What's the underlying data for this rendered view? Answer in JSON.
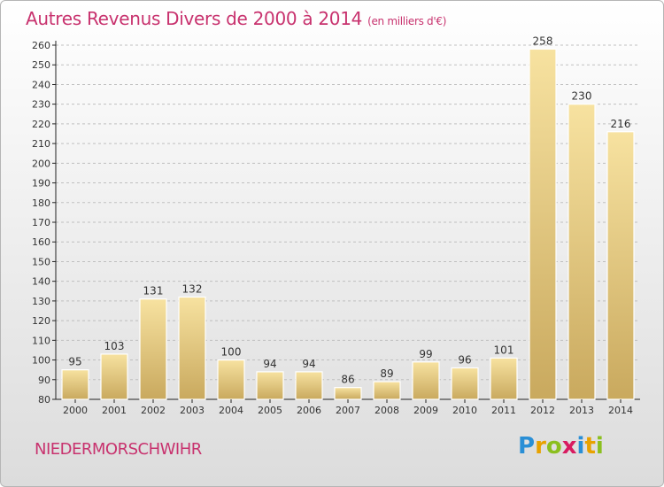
{
  "title": "Autres Revenus Divers de 2000 à 2014",
  "title_unit": "(en milliers d'€)",
  "place": "NIEDERMORSCHWIHR",
  "logo": {
    "text": "Proxiti",
    "letters": [
      {
        "ch": "P",
        "color": "#2a8fd6"
      },
      {
        "ch": "r",
        "color": "#e8a200"
      },
      {
        "ch": "o",
        "color": "#8bbf1f"
      },
      {
        "ch": "x",
        "color": "#d81b60"
      },
      {
        "ch": "i",
        "color": "#2a8fd6"
      },
      {
        "ch": "t",
        "color": "#e8a200"
      },
      {
        "ch": "i",
        "color": "#8bbf1f"
      }
    ]
  },
  "colors": {
    "title": "#c8326e",
    "bar_light": "#f7e2a0",
    "bar_dark": "#c9a95e",
    "grid": "#bfbfbf",
    "axis": "#222222",
    "text": "#333333"
  },
  "chart_data": {
    "type": "bar",
    "title": "Autres Revenus Divers de 2000 à 2014",
    "ylabel": "",
    "xlabel": "",
    "categories": [
      "2000",
      "2001",
      "2002",
      "2003",
      "2004",
      "2005",
      "2006",
      "2007",
      "2008",
      "2009",
      "2010",
      "2011",
      "2012",
      "2013",
      "2014"
    ],
    "values": [
      95,
      103,
      131,
      132,
      100,
      94,
      94,
      86,
      89,
      99,
      96,
      101,
      258,
      230,
      216
    ],
    "ylim": [
      80,
      260
    ],
    "ytick_step": 10,
    "grid": "horizontal, dashed",
    "data_labels": true
  }
}
